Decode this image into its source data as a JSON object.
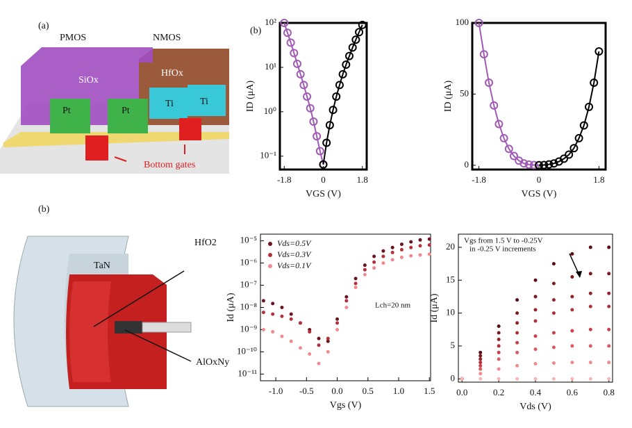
{
  "diagrams": {
    "panel_a": {
      "label": "(a)",
      "pmos": "PMOS",
      "nmos": "NMOS",
      "oxide_left": "SiOx",
      "oxide_right": "HfOx",
      "contacts": [
        "Pt",
        "Pt",
        "Ti",
        "Ti"
      ],
      "gates": "Bottom gates"
    },
    "panel_b_top": {
      "label": "(b)"
    },
    "panel_b": {
      "label": "(b)",
      "outer": "TaN",
      "dielectric": "HfO2",
      "interlayer": "AlOxNy"
    }
  },
  "chart_data": [
    {
      "type": "line",
      "xlabel": "VGS (V)",
      "ylabel": "ID (μA)",
      "log_y": true,
      "frame": "thick",
      "xlim": [
        -2.0,
        2.0
      ],
      "xticks": [
        -1.8,
        0,
        1.8
      ],
      "ylim": [
        0.05,
        100
      ],
      "yticks": [
        {
          "value": 0.1,
          "label": "10⁻¹"
        },
        {
          "value": 1,
          "label": "10⁰"
        },
        {
          "value": 10,
          "label": "10¹"
        },
        {
          "value": 100,
          "label": "10²"
        }
      ],
      "series": [
        {
          "color": "#a05ab4",
          "x": [
            -1.8,
            -1.65,
            -1.5,
            -1.35,
            -1.2,
            -1.05,
            -0.9,
            -0.75,
            -0.6,
            -0.45,
            -0.3,
            -0.15,
            0
          ],
          "values": [
            100,
            60,
            36,
            21,
            12,
            7,
            4,
            2.2,
            1.2,
            0.6,
            0.28,
            0.13,
            0.065
          ]
        },
        {
          "color": "#000000",
          "x": [
            0,
            0.15,
            0.3,
            0.45,
            0.6,
            0.75,
            0.9,
            1.05,
            1.2,
            1.35,
            1.5,
            1.65,
            1.8
          ],
          "values": [
            0.065,
            0.2,
            0.5,
            1.1,
            2.2,
            4,
            7,
            11.5,
            18,
            28,
            42,
            62,
            90
          ]
        }
      ]
    },
    {
      "type": "line",
      "xlabel": "VGS (V)",
      "ylabel": "ID (μA)",
      "log_y": false,
      "frame": "thick",
      "xlim": [
        -2.0,
        2.0
      ],
      "xticks": [
        -1.8,
        0,
        1.8
      ],
      "ylim": [
        -3,
        100
      ],
      "yticks": [
        0,
        50,
        100
      ],
      "series": [
        {
          "color": "#a05ab4",
          "x": [
            -1.8,
            -1.65,
            -1.5,
            -1.35,
            -1.2,
            -1.05,
            -0.9,
            -0.75,
            -0.6,
            -0.45,
            -0.3,
            -0.15,
            0
          ],
          "values": [
            100,
            78,
            58,
            42,
            29,
            19,
            11.5,
            6.5,
            3.2,
            1.3,
            0.5,
            0.15,
            0.05
          ]
        },
        {
          "color": "#000000",
          "x": [
            0,
            0.15,
            0.3,
            0.45,
            0.6,
            0.75,
            0.9,
            1.05,
            1.2,
            1.35,
            1.5,
            1.65,
            1.8
          ],
          "values": [
            0.05,
            0.2,
            0.6,
            1.3,
            2.6,
            4.6,
            7.5,
            12,
            19,
            28,
            41,
            58,
            80
          ]
        }
      ]
    },
    {
      "type": "scatter",
      "xlabel": "Vgs (V)",
      "ylabel": "Id (μA)",
      "log_y": true,
      "frame": "thin",
      "legend": "upper left",
      "annotations": [
        "Lch=20 nm"
      ],
      "xlim": [
        -1.25,
        1.52
      ],
      "xticks": [
        {
          "value": -1,
          "label": "-1.0"
        },
        -0.5,
        {
          "value": 0,
          "label": "0.0"
        },
        0.5,
        {
          "value": 1,
          "label": "1.0"
        },
        1.5
      ],
      "ylim": [
        5e-12,
        2e-05
      ],
      "yticks": [
        {
          "value": 1e-11,
          "label": "10⁻¹¹"
        },
        {
          "value": 1e-10,
          "label": "10⁻¹⁰"
        },
        {
          "value": 1e-09,
          "label": "10⁻⁹"
        },
        {
          "value": 1e-08,
          "label": "10⁻⁸"
        },
        {
          "value": 1e-07,
          "label": "10⁻⁷"
        },
        {
          "value": 1e-06,
          "label": "10⁻⁶"
        },
        {
          "value": 1e-05,
          "label": "10⁻⁵"
        }
      ],
      "x": [
        -1.2,
        -1.05,
        -0.9,
        -0.75,
        -0.6,
        -0.45,
        -0.3,
        -0.15,
        0,
        0.15,
        0.3,
        0.45,
        0.6,
        0.75,
        0.9,
        1.05,
        1.2,
        1.35,
        1.5
      ],
      "series": [
        {
          "name": "Vds=0.5V",
          "color": "#6b1420",
          "values": [
            2e-08,
            1.5e-08,
            1e-08,
            5e-09,
            2e-09,
            1e-09,
            4e-10,
            3e-10,
            3e-09,
            3e-08,
            2e-07,
            8e-07,
            2e-06,
            3.5e-06,
            5e-06,
            7e-06,
            9e-06,
            1.1e-05,
            1.2e-05
          ]
        },
        {
          "name": "Vds=0.3V",
          "color": "#b3303c",
          "values": [
            6e-09,
            5e-09,
            4e-09,
            3e-09,
            2e-09,
            8e-10,
            2e-10,
            4e-10,
            2e-09,
            2e-08,
            1.2e-07,
            5e-07,
            1.1e-06,
            2e-06,
            3e-06,
            4e-06,
            5e-06,
            6e-06,
            6.5e-06
          ]
        },
        {
          "name": "Vds=0.1V",
          "color": "#f08a90",
          "values": [
            1e-09,
            8e-10,
            5e-10,
            3e-10,
            1.5e-10,
            8e-11,
            3e-11,
            1e-10,
            1e-09,
            1e-08,
            8e-08,
            3e-07,
            6e-07,
            1e-06,
            1.4e-06,
            1.8e-06,
            2.1e-06,
            2.3e-06,
            2.5e-06
          ]
        }
      ]
    },
    {
      "type": "scatter",
      "xlabel": "Vds (V)",
      "ylabel": "Id (μA)",
      "log_y": false,
      "frame": "thin",
      "annotations": [
        "Vgs from 1.5 V to -0.25V",
        "in -0.25 V increments"
      ],
      "xlim": [
        -0.02,
        0.82
      ],
      "xticks": [
        {
          "value": 0,
          "label": "0.0"
        },
        0.2,
        0.4,
        0.6,
        0.8
      ],
      "ylim": [
        -0.5,
        22
      ],
      "yticks": [
        0,
        5,
        10,
        15,
        20
      ],
      "x": [
        0,
        0.1,
        0.2,
        0.3,
        0.4,
        0.5,
        0.6,
        0.7,
        0.8
      ],
      "series": [
        {
          "color": "#5a0d14",
          "values": [
            0,
            4,
            8,
            12,
            15,
            17.5,
            19,
            20,
            20
          ]
        },
        {
          "color": "#7a1a22",
          "values": [
            0,
            3.5,
            7,
            10,
            12.5,
            14.5,
            15.5,
            16,
            16
          ]
        },
        {
          "color": "#93232d",
          "values": [
            0,
            3,
            6,
            8.5,
            10.5,
            12,
            12.5,
            13,
            13
          ]
        },
        {
          "color": "#b0303a",
          "values": [
            0,
            2.5,
            5,
            7,
            8.8,
            10,
            10.5,
            11,
            11
          ]
        },
        {
          "color": "#c9404a",
          "values": [
            0,
            2,
            4,
            5.5,
            6.5,
            7,
            7.3,
            7.5,
            7.5
          ]
        },
        {
          "color": "#de5a62",
          "values": [
            0,
            1.5,
            3,
            4,
            4.5,
            4.8,
            5,
            5,
            5
          ]
        },
        {
          "color": "#ef8a8e",
          "values": [
            0,
            0.8,
            1.5,
            2,
            2.3,
            2.4,
            2.5,
            2.5,
            2.5
          ]
        },
        {
          "color": "#f7b5b8",
          "values": [
            0,
            0,
            0,
            0,
            0,
            0,
            0,
            0,
            0
          ]
        }
      ]
    }
  ]
}
